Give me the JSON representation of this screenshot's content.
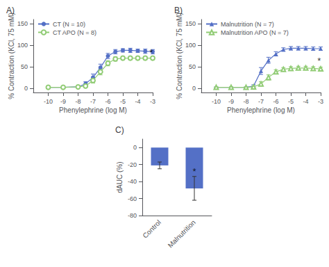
{
  "chart_data": [
    {
      "type": "line",
      "title": "A)",
      "xlabel": "Phenylephrine (log M)",
      "ylabel": "% Contraction (KCl, 75 mM)",
      "xlim": [
        -11,
        -3
      ],
      "ylim": [
        -10,
        160
      ],
      "xticks": [
        -10,
        -9,
        -8,
        -7,
        -6,
        -5,
        -4,
        -3
      ],
      "yticks": [
        0,
        50,
        100,
        150
      ],
      "grid": false,
      "legend": "upper left",
      "series": [
        {
          "name": "CT (N = 10)",
          "marker": "circle",
          "x": [
            -10,
            -9,
            -8,
            -7.5,
            -7,
            -6.5,
            -6,
            -5.5,
            -5,
            -4.5,
            -4,
            -3.5,
            -3
          ],
          "values": [
            2,
            2,
            3,
            10,
            25,
            48,
            75,
            85,
            88,
            88,
            87,
            86,
            85
          ],
          "errors": [
            1,
            1,
            1,
            5,
            8,
            8,
            6,
            5,
            4,
            5,
            4,
            5,
            5
          ]
        },
        {
          "name": "CT APO (N = 8)",
          "marker": "emptyCircle",
          "x": [
            -10,
            -9,
            -8,
            -7.5,
            -7,
            -6.5,
            -6,
            -5.5,
            -5,
            -4.5,
            -4,
            -3.5,
            -3
          ],
          "values": [
            2,
            2,
            3,
            5,
            18,
            38,
            58,
            68,
            70,
            70,
            70,
            70,
            70
          ],
          "errors": [
            1,
            1,
            2,
            3,
            6,
            7,
            6,
            5,
            4,
            4,
            4,
            4,
            4
          ]
        }
      ],
      "annotations": [
        {
          "text": "*",
          "x": -3.1,
          "y": 73
        }
      ]
    },
    {
      "type": "line",
      "title": "B)",
      "xlabel": "Phenylephrine (log M)",
      "ylabel": "% Contraction (KCl, 75 mM)",
      "xlim": [
        -11,
        -3
      ],
      "ylim": [
        -10,
        160
      ],
      "xticks": [
        -10,
        -9,
        -8,
        -7,
        -6,
        -5,
        -4,
        -3
      ],
      "yticks": [
        0,
        50,
        100,
        150
      ],
      "grid": false,
      "legend": "upper left",
      "series": [
        {
          "name": "Malnutrition (N = 7)",
          "marker": "triangle",
          "x": [
            -10,
            -9,
            -8,
            -7.5,
            -7,
            -6.5,
            -6,
            -5.5,
            -5,
            -4.5,
            -4,
            -3.5,
            -3
          ],
          "values": [
            2,
            2,
            2,
            5,
            40,
            65,
            80,
            90,
            93,
            93,
            93,
            92,
            92
          ],
          "errors": [
            1,
            1,
            1,
            3,
            8,
            7,
            5,
            4,
            4,
            4,
            4,
            4,
            4
          ]
        },
        {
          "name": "Malnutrition APO (N = 7)",
          "marker": "emptyTriangle",
          "x": [
            -10,
            -9,
            -8,
            -7.5,
            -7,
            -6.5,
            -6,
            -5.5,
            -5,
            -4.5,
            -4,
            -3.5,
            -3
          ],
          "values": [
            2,
            2,
            2,
            3,
            10,
            25,
            38,
            44,
            46,
            47,
            47,
            46,
            45
          ],
          "errors": [
            1,
            1,
            1,
            2,
            5,
            6,
            5,
            4,
            4,
            4,
            4,
            4,
            4
          ]
        }
      ],
      "annotations": [
        {
          "text": "*",
          "x": -3.1,
          "y": 53
        }
      ]
    },
    {
      "type": "bar",
      "title": "C)",
      "ylabel": "dAUC (%)",
      "categories": [
        "Control",
        "Malnutrition"
      ],
      "values": [
        -21,
        -48
      ],
      "errors": [
        4,
        14
      ],
      "ylim": [
        -80,
        10
      ],
      "yticks": [
        -80,
        -60,
        -40,
        -20,
        0
      ],
      "grid": false,
      "annotations": [
        {
          "text": "*",
          "x": "Malnutrition",
          "y": -33
        }
      ]
    }
  ]
}
